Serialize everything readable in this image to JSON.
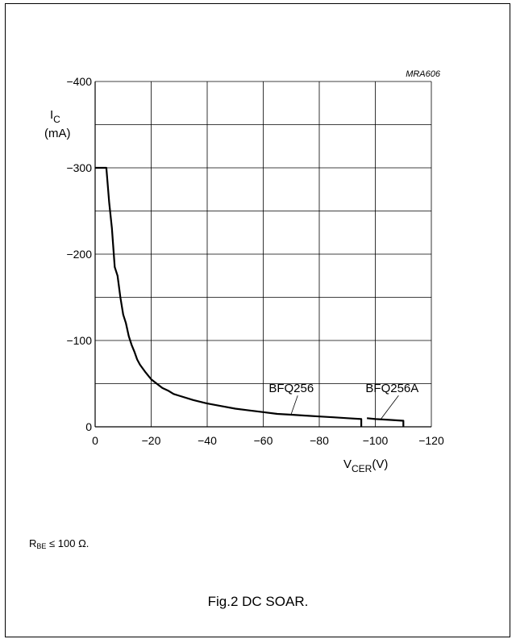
{
  "chart_data": {
    "type": "line",
    "reference": "MRA606",
    "caption": "Fig.2  DC SOAR.",
    "note": {
      "base": "R",
      "sub": "BE",
      "rest": " ≤ 100 Ω."
    },
    "xlabel": {
      "main": "V",
      "sub": "CER",
      "unit": "(V)"
    },
    "ylabel": {
      "main": "I",
      "sub": "C",
      "unit": "(mA)"
    },
    "xlim": [
      0,
      -120
    ],
    "ylim": [
      0,
      -400
    ],
    "x_ticks": [
      {
        "value": 0,
        "label": "0"
      },
      {
        "value": -20,
        "label": "−20"
      },
      {
        "value": -40,
        "label": "−40"
      },
      {
        "value": -60,
        "label": "−60"
      },
      {
        "value": -80,
        "label": "−80"
      },
      {
        "value": -100,
        "label": "−100"
      },
      {
        "value": -120,
        "label": "−120"
      }
    ],
    "y_ticks": [
      {
        "value": 0,
        "label": "0"
      },
      {
        "value": -100,
        "label": "−100"
      },
      {
        "value": -200,
        "label": "−200"
      },
      {
        "value": -300,
        "label": "−300"
      },
      {
        "value": -400,
        "label": "−400"
      }
    ],
    "grid": true,
    "grid_x_step": 20,
    "grid_y_step": 50,
    "series": [
      {
        "name": "BFQ256",
        "points": [
          [
            0,
            -300
          ],
          [
            -4,
            -300
          ],
          [
            -5,
            -260
          ],
          [
            -6,
            -230
          ],
          [
            -7,
            -185
          ],
          [
            -8,
            -175
          ],
          [
            -9,
            -150
          ],
          [
            -10,
            -130
          ],
          [
            -11,
            -120
          ],
          [
            -12,
            -105
          ],
          [
            -13,
            -95
          ],
          [
            -14,
            -87
          ],
          [
            -15,
            -78
          ],
          [
            -16,
            -72
          ],
          [
            -18,
            -63
          ],
          [
            -20,
            -55
          ],
          [
            -22,
            -50
          ],
          [
            -24,
            -45
          ],
          [
            -26,
            -42
          ],
          [
            -28,
            -38
          ],
          [
            -30,
            -36
          ],
          [
            -35,
            -31
          ],
          [
            -40,
            -27
          ],
          [
            -45,
            -24
          ],
          [
            -50,
            -21
          ],
          [
            -55,
            -19
          ],
          [
            -60,
            -17
          ],
          [
            -65,
            -15
          ],
          [
            -70,
            -14
          ],
          [
            -75,
            -13
          ],
          [
            -80,
            -12
          ],
          [
            -85,
            -11
          ],
          [
            -90,
            -10
          ],
          [
            -95,
            -9
          ],
          [
            -95,
            0
          ]
        ]
      },
      {
        "name": "BFQ256A",
        "points": [
          [
            -97,
            -10
          ],
          [
            -100,
            -9
          ],
          [
            -105,
            -8
          ],
          [
            -110,
            -7
          ],
          [
            -110,
            0
          ]
        ]
      }
    ],
    "labels": [
      {
        "text": "BFQ256",
        "at": [
          -70,
          -40
        ],
        "leader_to": [
          -70,
          -15
        ]
      },
      {
        "text": "BFQ256A",
        "at": [
          -106,
          -40
        ],
        "leader_to": [
          -102,
          -9
        ]
      }
    ]
  }
}
